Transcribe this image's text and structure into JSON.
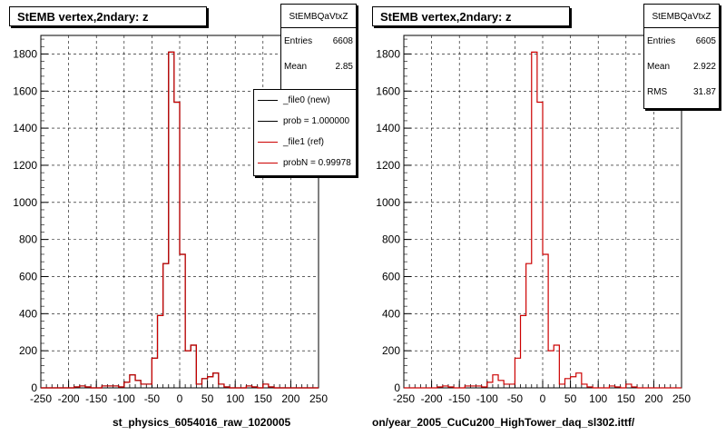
{
  "chart_data": [
    {
      "type": "histogram",
      "title": "StEMB  vertex,2ndary: z",
      "xlabel": "st_physics_6054016_raw_1020005",
      "xlim": [
        -250,
        250
      ],
      "ylim": [
        0,
        1900
      ],
      "xticks": [
        -250,
        -200,
        -150,
        -100,
        -50,
        0,
        50,
        100,
        150,
        200,
        250
      ],
      "yticks": [
        0,
        200,
        400,
        600,
        800,
        1000,
        1200,
        1400,
        1600,
        1800
      ],
      "grid": true,
      "bin_edges": [
        -250,
        -240,
        -230,
        -220,
        -210,
        -200,
        -190,
        -180,
        -170,
        -160,
        -150,
        -140,
        -130,
        -120,
        -110,
        -100,
        -90,
        -80,
        -70,
        -60,
        -50,
        -40,
        -30,
        -20,
        -10,
        0,
        10,
        20,
        30,
        40,
        50,
        60,
        70,
        80,
        90,
        100,
        110,
        120,
        130,
        140,
        150,
        160,
        170,
        180,
        190,
        200,
        210,
        220,
        230,
        240,
        250
      ],
      "series": [
        {
          "name": "_file0 (new)",
          "color": "#000000",
          "values": [
            0,
            0,
            0,
            0,
            0,
            0,
            5,
            10,
            5,
            0,
            0,
            10,
            10,
            10,
            5,
            30,
            70,
            40,
            20,
            20,
            160,
            390,
            670,
            1810,
            1540,
            720,
            200,
            230,
            20,
            50,
            60,
            80,
            20,
            5,
            0,
            0,
            0,
            10,
            5,
            0,
            20,
            5,
            0,
            0,
            0,
            0,
            0,
            0,
            0,
            0
          ]
        },
        {
          "name": "_file1 (ref)",
          "color": "#cc0000",
          "values": [
            0,
            0,
            0,
            0,
            0,
            0,
            5,
            10,
            5,
            0,
            0,
            10,
            10,
            10,
            5,
            30,
            70,
            40,
            20,
            20,
            160,
            390,
            670,
            1810,
            1540,
            720,
            200,
            230,
            20,
            50,
            60,
            80,
            20,
            5,
            0,
            0,
            0,
            10,
            5,
            0,
            20,
            5,
            0,
            0,
            0,
            0,
            0,
            0,
            0,
            0
          ]
        }
      ],
      "stats": {
        "name": "StEMBQaVtxZ",
        "rows": [
          {
            "label": "Entries",
            "value": "6608"
          },
          {
            "label": "Mean",
            "value": "2.85"
          }
        ]
      },
      "legend": [
        {
          "label": "_file0 (new)",
          "color": "#000000"
        },
        {
          "label": "prob = 1.000000",
          "color": "#000000"
        },
        {
          "label": "_file1 (ref)",
          "color": "#cc0000"
        },
        {
          "label": "probN = 0.99978",
          "color": "#cc0000"
        }
      ]
    },
    {
      "type": "histogram",
      "title": "StEMB  vertex,2ndary: z",
      "xlabel": "on/year_2005_CuCu200_HighTower_daq_sl302.ittf/",
      "xlim": [
        -250,
        250
      ],
      "ylim": [
        0,
        1900
      ],
      "xticks": [
        -250,
        -200,
        -150,
        -100,
        -50,
        0,
        50,
        100,
        150,
        200,
        250
      ],
      "yticks": [
        0,
        200,
        400,
        600,
        800,
        1000,
        1200,
        1400,
        1600,
        1800
      ],
      "grid": true,
      "bin_edges": [
        -250,
        -240,
        -230,
        -220,
        -210,
        -200,
        -190,
        -180,
        -170,
        -160,
        -150,
        -140,
        -130,
        -120,
        -110,
        -100,
        -90,
        -80,
        -70,
        -60,
        -50,
        -40,
        -30,
        -20,
        -10,
        0,
        10,
        20,
        30,
        40,
        50,
        60,
        70,
        80,
        90,
        100,
        110,
        120,
        130,
        140,
        150,
        160,
        170,
        180,
        190,
        200,
        210,
        220,
        230,
        240,
        250
      ],
      "series": [
        {
          "name": "",
          "color": "#cc0000",
          "values": [
            0,
            0,
            0,
            0,
            0,
            0,
            5,
            10,
            5,
            0,
            0,
            10,
            10,
            10,
            5,
            30,
            70,
            40,
            20,
            20,
            160,
            390,
            670,
            1810,
            1540,
            720,
            200,
            230,
            20,
            50,
            60,
            80,
            20,
            5,
            0,
            0,
            0,
            10,
            5,
            0,
            20,
            5,
            0,
            0,
            0,
            0,
            0,
            0,
            0,
            0
          ]
        }
      ],
      "stats": {
        "name": "StEMBQaVtxZ",
        "rows": [
          {
            "label": "Entries",
            "value": "6605"
          },
          {
            "label": "Mean",
            "value": "2.922"
          },
          {
            "label": "RMS",
            "value": "31.87"
          }
        ]
      }
    }
  ]
}
